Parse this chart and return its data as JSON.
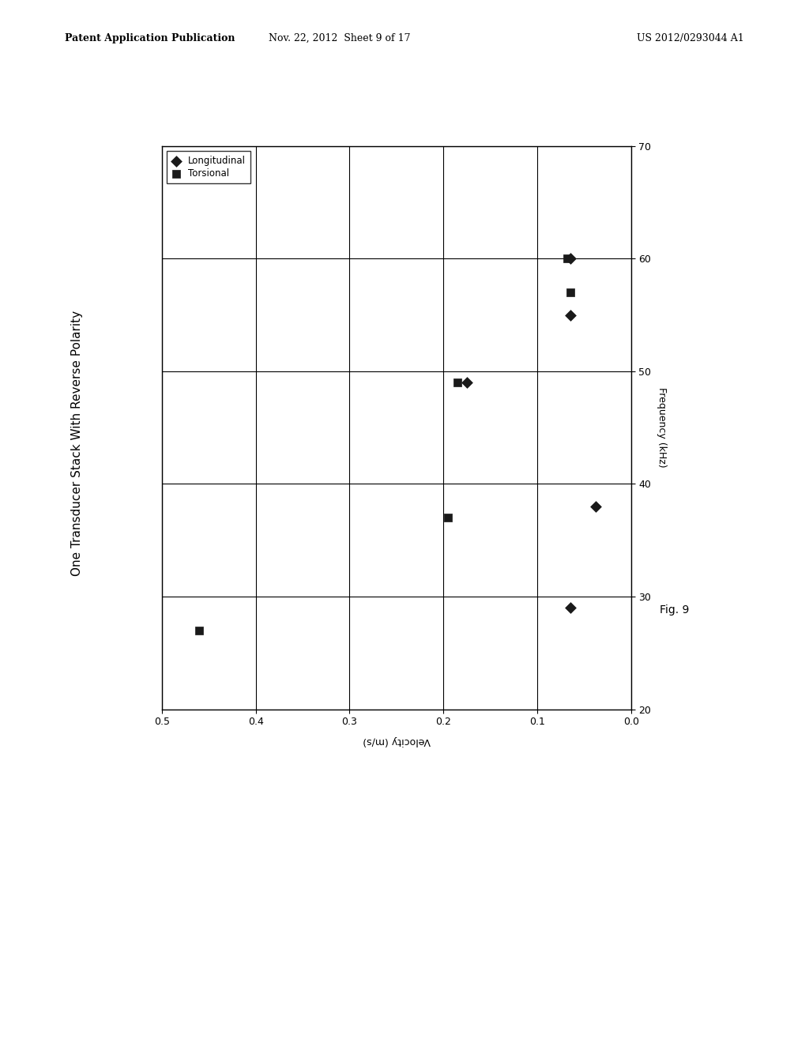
{
  "title": "One Transducer Stack With Reverse Polarity",
  "xlabel": "Velocity (m/s)",
  "ylabel": "Frequency (kHz)",
  "fig_label": "Fig. 9",
  "xlim_reversed": [
    0.5,
    0.0
  ],
  "ylim": [
    20,
    70
  ],
  "xticks": [
    0.5,
    0.4,
    0.3,
    0.2,
    0.1,
    0.0
  ],
  "yticks": [
    20,
    30,
    40,
    50,
    60,
    70
  ],
  "longitudinal_data": {
    "velocity": [
      0.065,
      0.038,
      0.175,
      0.065,
      0.065
    ],
    "frequency": [
      29,
      38,
      49,
      55,
      60
    ]
  },
  "torsional_data": {
    "velocity": [
      0.46,
      0.195,
      0.185,
      0.065,
      0.068
    ],
    "frequency": [
      27,
      37,
      49,
      57,
      60
    ]
  },
  "legend_labels": [
    "Longitudinal",
    "Torsional"
  ],
  "marker_longitudinal": "D",
  "marker_torsional": "s",
  "marker_color": "#1a1a1a",
  "marker_size": 7,
  "background_color": "#ffffff",
  "grid_color": "#000000",
  "font_size_title": 11,
  "font_size_axis": 9,
  "font_size_ticks": 9,
  "header_left": "Patent Application Publication",
  "header_center": "Nov. 22, 2012  Sheet 9 of 17",
  "header_right": "US 2012/0293044 A1"
}
